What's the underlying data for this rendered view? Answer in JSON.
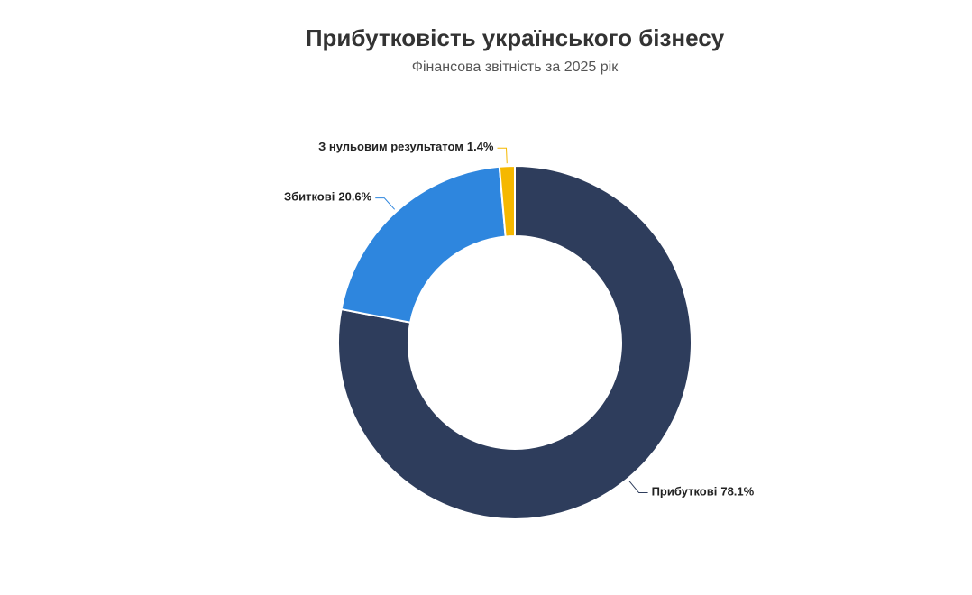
{
  "chart_data": {
    "type": "donut",
    "title": "Прибутковість українського бізнесу",
    "subtitle": "Фінансова звітність за 2025 рік",
    "categories": [
      "Прибуткові",
      "Збиткові",
      "З нульовим результатом"
    ],
    "values": [
      78.1,
      20.6,
      1.4
    ],
    "value_labels": [
      "78.1%",
      "20.6%",
      "1.4%"
    ],
    "colors": [
      "#2e3d5c",
      "#2e86de",
      "#f5b800"
    ]
  }
}
